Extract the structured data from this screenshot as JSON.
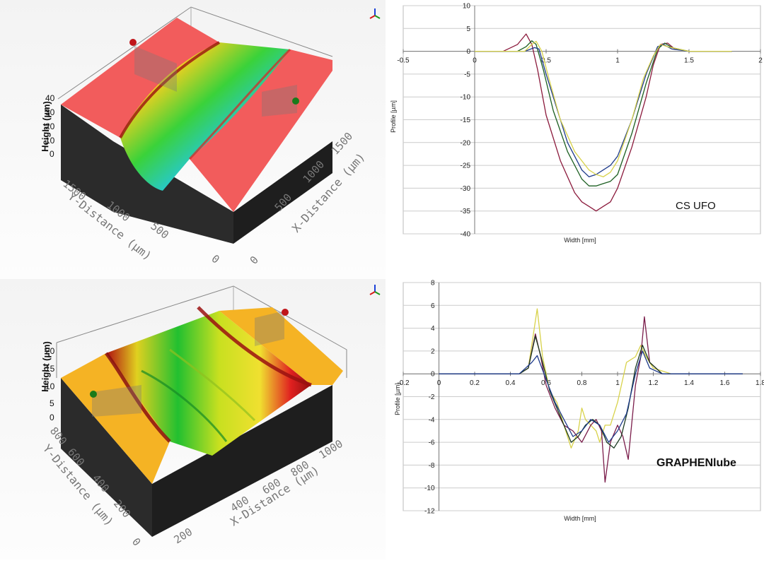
{
  "surface_top": {
    "z_axis_label": "Height (µm)",
    "z_ticks": [
      "40",
      "30",
      "20",
      "10",
      "0"
    ],
    "y_axis_label": "Y-Distance (µm)",
    "y_ticks": [
      "1500",
      "1000",
      "500",
      "0"
    ],
    "x_axis_label": "X-Distance (µm)",
    "x_ticks": [
      "1500",
      "1000",
      "500",
      "0"
    ],
    "colors": {
      "flat": "#f25c5c",
      "side": "#2b2b2b",
      "groove_low": "#1830d8",
      "groove_mid": "#3ad23a",
      "groove_high": "#e01a1a"
    }
  },
  "surface_bottom": {
    "z_axis_label": "Height (µm)",
    "z_ticks": [
      "20",
      "15",
      "10",
      "5",
      "0"
    ],
    "y_axis_label": "Y-Distance (µm)",
    "y_ticks": [
      "800",
      "600",
      "400",
      "200",
      "0"
    ],
    "x_axis_label": "X-Distance (µm)",
    "x_ticks": [
      "1000",
      "800",
      "600",
      "400",
      "200"
    ],
    "colors": {
      "flat": "#f5b324",
      "side": "#2b2b2b",
      "groove_low": "#1aa83a",
      "groove_mid": "#c8e020",
      "groove_high": "#b01010"
    }
  },
  "chart_data": [
    {
      "type": "line",
      "annotation": "CS UFO",
      "xlabel": "Width  [mm]",
      "ylabel": "Profile [µm]",
      "xlim": [
        -0.5,
        2
      ],
      "ylim": [
        -40,
        10
      ],
      "xticks": [
        "-0.5",
        "0",
        "0.5",
        "1",
        "1.5",
        "2"
      ],
      "yticks": [
        "10",
        "5",
        "0",
        "-5",
        "-10",
        "-15",
        "-20",
        "-25",
        "-30",
        "-35",
        "-40"
      ],
      "xtick_values": [
        -0.5,
        0,
        0.5,
        1,
        1.5,
        2
      ],
      "ytick_values": [
        10,
        5,
        0,
        -5,
        -10,
        -15,
        -20,
        -25,
        -30,
        -35,
        -40
      ],
      "grid": true,
      "series": [
        {
          "color": "#8b1a3c",
          "x": [
            0,
            0.2,
            0.3,
            0.36,
            0.4,
            0.44,
            0.5,
            0.6,
            0.7,
            0.75,
            0.8,
            0.85,
            0.9,
            0.95,
            1.0,
            1.1,
            1.2,
            1.25,
            1.3,
            1.35,
            1.4,
            1.5,
            1.8
          ],
          "y": [
            0,
            0,
            1.5,
            3.8,
            1.5,
            -4,
            -14,
            -24,
            -31,
            -33,
            -34,
            -35,
            -34,
            -33,
            -30,
            -21,
            -10,
            -3,
            1.5,
            1.8,
            0.5,
            0,
            0
          ]
        },
        {
          "color": "#1b5e20",
          "x": [
            0,
            0.3,
            0.36,
            0.4,
            0.43,
            0.48,
            0.55,
            0.65,
            0.75,
            0.8,
            0.85,
            0.9,
            0.95,
            1.0,
            1.1,
            1.2,
            1.28,
            1.33,
            1.38,
            1.5,
            1.8
          ],
          "y": [
            0,
            0,
            1,
            2.3,
            1.5,
            -4,
            -13,
            -22,
            -28,
            -29.5,
            -29.5,
            -29,
            -28.5,
            -27,
            -18,
            -7,
            0.5,
            1.8,
            0.8,
            0,
            0
          ]
        },
        {
          "color": "#1e3a8a",
          "x": [
            0,
            0.35,
            0.42,
            0.45,
            0.5,
            0.57,
            0.65,
            0.75,
            0.8,
            0.85,
            0.9,
            0.95,
            1.0,
            1.1,
            1.2,
            1.28,
            1.32,
            1.38,
            1.5,
            1.8
          ],
          "y": [
            0,
            0,
            0.8,
            0.5,
            -5,
            -12,
            -20,
            -26,
            -27.5,
            -27,
            -26,
            -25,
            -23,
            -15,
            -5,
            1,
            1.5,
            0.5,
            0,
            0
          ]
        },
        {
          "color": "#d8d24a",
          "x": [
            0,
            0.35,
            0.4,
            0.43,
            0.47,
            0.52,
            0.6,
            0.7,
            0.8,
            0.85,
            0.9,
            0.95,
            1.0,
            1.1,
            1.18,
            1.25,
            1.3,
            1.35,
            1.5,
            1.8
          ],
          "y": [
            0,
            0,
            1.5,
            2.2,
            0,
            -6,
            -15,
            -22,
            -26,
            -27,
            -27.5,
            -26.5,
            -24,
            -15,
            -6,
            -1,
            1.5,
            1,
            0,
            0
          ]
        }
      ]
    },
    {
      "type": "line",
      "annotation": "GRAPHENlube",
      "xlabel": "Width  [mm]",
      "ylabel": "Profile [µm]",
      "xlim": [
        -0.2,
        1.8
      ],
      "ylim": [
        -12,
        8
      ],
      "xticks": [
        "-0.2",
        "0",
        "0.2",
        "0.4",
        "0.6",
        "0.8",
        "1",
        "1.2",
        "1.4",
        "1.6",
        "1.8"
      ],
      "yticks": [
        "8",
        "6",
        "4",
        "2",
        "0",
        "-2",
        "-4",
        "-6",
        "-8",
        "-10",
        "-12"
      ],
      "xtick_values": [
        -0.2,
        0,
        0.2,
        0.4,
        0.6,
        0.8,
        1,
        1.2,
        1.4,
        1.6,
        1.8
      ],
      "ytick_values": [
        8,
        6,
        4,
        2,
        0,
        -2,
        -4,
        -6,
        -8,
        -10,
        -12
      ],
      "grid": true,
      "series": [
        {
          "color": "#d8d24a",
          "x": [
            0,
            0.45,
            0.5,
            0.55,
            0.58,
            0.62,
            0.66,
            0.7,
            0.74,
            0.78,
            0.8,
            0.82,
            0.85,
            0.88,
            0.9,
            0.93,
            0.96,
            1.0,
            1.05,
            1.1,
            1.13,
            1.16,
            1.2,
            1.3,
            1.7
          ],
          "y": [
            0,
            0,
            0.5,
            5.7,
            1.5,
            -1.5,
            -2.5,
            -4.5,
            -6.5,
            -5,
            -3,
            -4,
            -4.5,
            -5,
            -6,
            -4.5,
            -4.5,
            -2.5,
            1,
            1.5,
            2.5,
            1.5,
            0.5,
            0,
            0
          ]
        },
        {
          "color": "#7a1c4a",
          "x": [
            0,
            0.45,
            0.5,
            0.54,
            0.57,
            0.6,
            0.65,
            0.7,
            0.75,
            0.8,
            0.85,
            0.88,
            0.91,
            0.93,
            0.96,
            1.0,
            1.03,
            1.06,
            1.1,
            1.13,
            1.15,
            1.18,
            1.25,
            1.7
          ],
          "y": [
            0,
            0,
            0.5,
            3.5,
            1.5,
            -1,
            -3,
            -4.5,
            -5,
            -6,
            -4.5,
            -4,
            -5,
            -9.5,
            -6,
            -4.5,
            -5.5,
            -7.5,
            -1,
            1.5,
            5,
            1,
            0,
            0
          ]
        },
        {
          "color": "#1b3a20",
          "x": [
            0,
            0.45,
            0.5,
            0.54,
            0.58,
            0.62,
            0.66,
            0.7,
            0.74,
            0.78,
            0.82,
            0.86,
            0.9,
            0.94,
            0.98,
            1.02,
            1.06,
            1.1,
            1.14,
            1.18,
            1.25,
            1.7
          ],
          "y": [
            0,
            0,
            0.5,
            3.3,
            1,
            -1.5,
            -3,
            -4.5,
            -6,
            -5.5,
            -4.5,
            -4,
            -4.5,
            -6,
            -6.5,
            -5.5,
            -3,
            0.5,
            2.5,
            1,
            0,
            0
          ]
        },
        {
          "color": "#1e3a8a",
          "x": [
            0,
            0.45,
            0.52,
            0.55,
            0.6,
            0.65,
            0.7,
            0.75,
            0.8,
            0.85,
            0.9,
            0.95,
            1.0,
            1.05,
            1.1,
            1.14,
            1.18,
            1.25,
            1.7
          ],
          "y": [
            0,
            0,
            1,
            1.6,
            -0.5,
            -2.5,
            -4,
            -5.5,
            -5,
            -4,
            -4.5,
            -6,
            -5,
            -3.5,
            0,
            2,
            0.5,
            0,
            0
          ]
        }
      ]
    }
  ]
}
